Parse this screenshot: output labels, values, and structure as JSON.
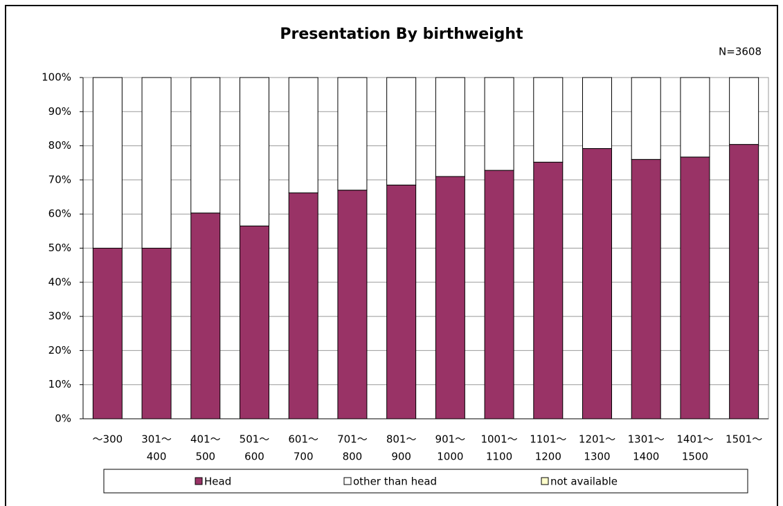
{
  "chart_data": {
    "type": "stacked_bar",
    "title": "Presentation By birthweight",
    "annotation": "N=3608",
    "categories": [
      [
        "〜300"
      ],
      [
        "301〜",
        "400"
      ],
      [
        "401〜",
        "500"
      ],
      [
        "501〜",
        "600"
      ],
      [
        "601〜",
        "700"
      ],
      [
        "701〜",
        "800"
      ],
      [
        "801〜",
        "900"
      ],
      [
        "901〜",
        "1000"
      ],
      [
        "1001〜",
        "1100"
      ],
      [
        "1101〜",
        "1200"
      ],
      [
        "1201〜",
        "1300"
      ],
      [
        "1301〜",
        "1400"
      ],
      [
        "1401〜",
        "1500"
      ],
      [
        "1501〜"
      ]
    ],
    "series": [
      {
        "name": "Head",
        "color": "#993366",
        "values": [
          50,
          50,
          60.3,
          56.5,
          66.2,
          67,
          68.5,
          71,
          72.8,
          75.2,
          79.2,
          76,
          76.7,
          80.4
        ]
      },
      {
        "name": "other than head",
        "color": "#ffffff",
        "values": [
          50,
          50,
          39.7,
          43.5,
          33.8,
          33,
          31.5,
          29,
          27.2,
          24.8,
          20.8,
          24,
          23.3,
          19.6
        ]
      },
      {
        "name": "not available",
        "color": "#ffffcc",
        "values": [
          0,
          0,
          0,
          0,
          0,
          0,
          0,
          0,
          0,
          0,
          0,
          0,
          0,
          0
        ]
      }
    ],
    "ylim": [
      0,
      100
    ],
    "yticks": [
      {
        "value": 0,
        "label": "0%"
      },
      {
        "value": 10,
        "label": "10%"
      },
      {
        "value": 20,
        "label": "20%"
      },
      {
        "value": 30,
        "label": "30%"
      },
      {
        "value": 40,
        "label": "40%"
      },
      {
        "value": 50,
        "label": "50%"
      },
      {
        "value": 60,
        "label": "60%"
      },
      {
        "value": 70,
        "label": "70%"
      },
      {
        "value": 80,
        "label": "80%"
      },
      {
        "value": 90,
        "label": "90%"
      },
      {
        "value": 100,
        "label": "100%"
      }
    ],
    "grid": true,
    "legend": "bottom"
  }
}
